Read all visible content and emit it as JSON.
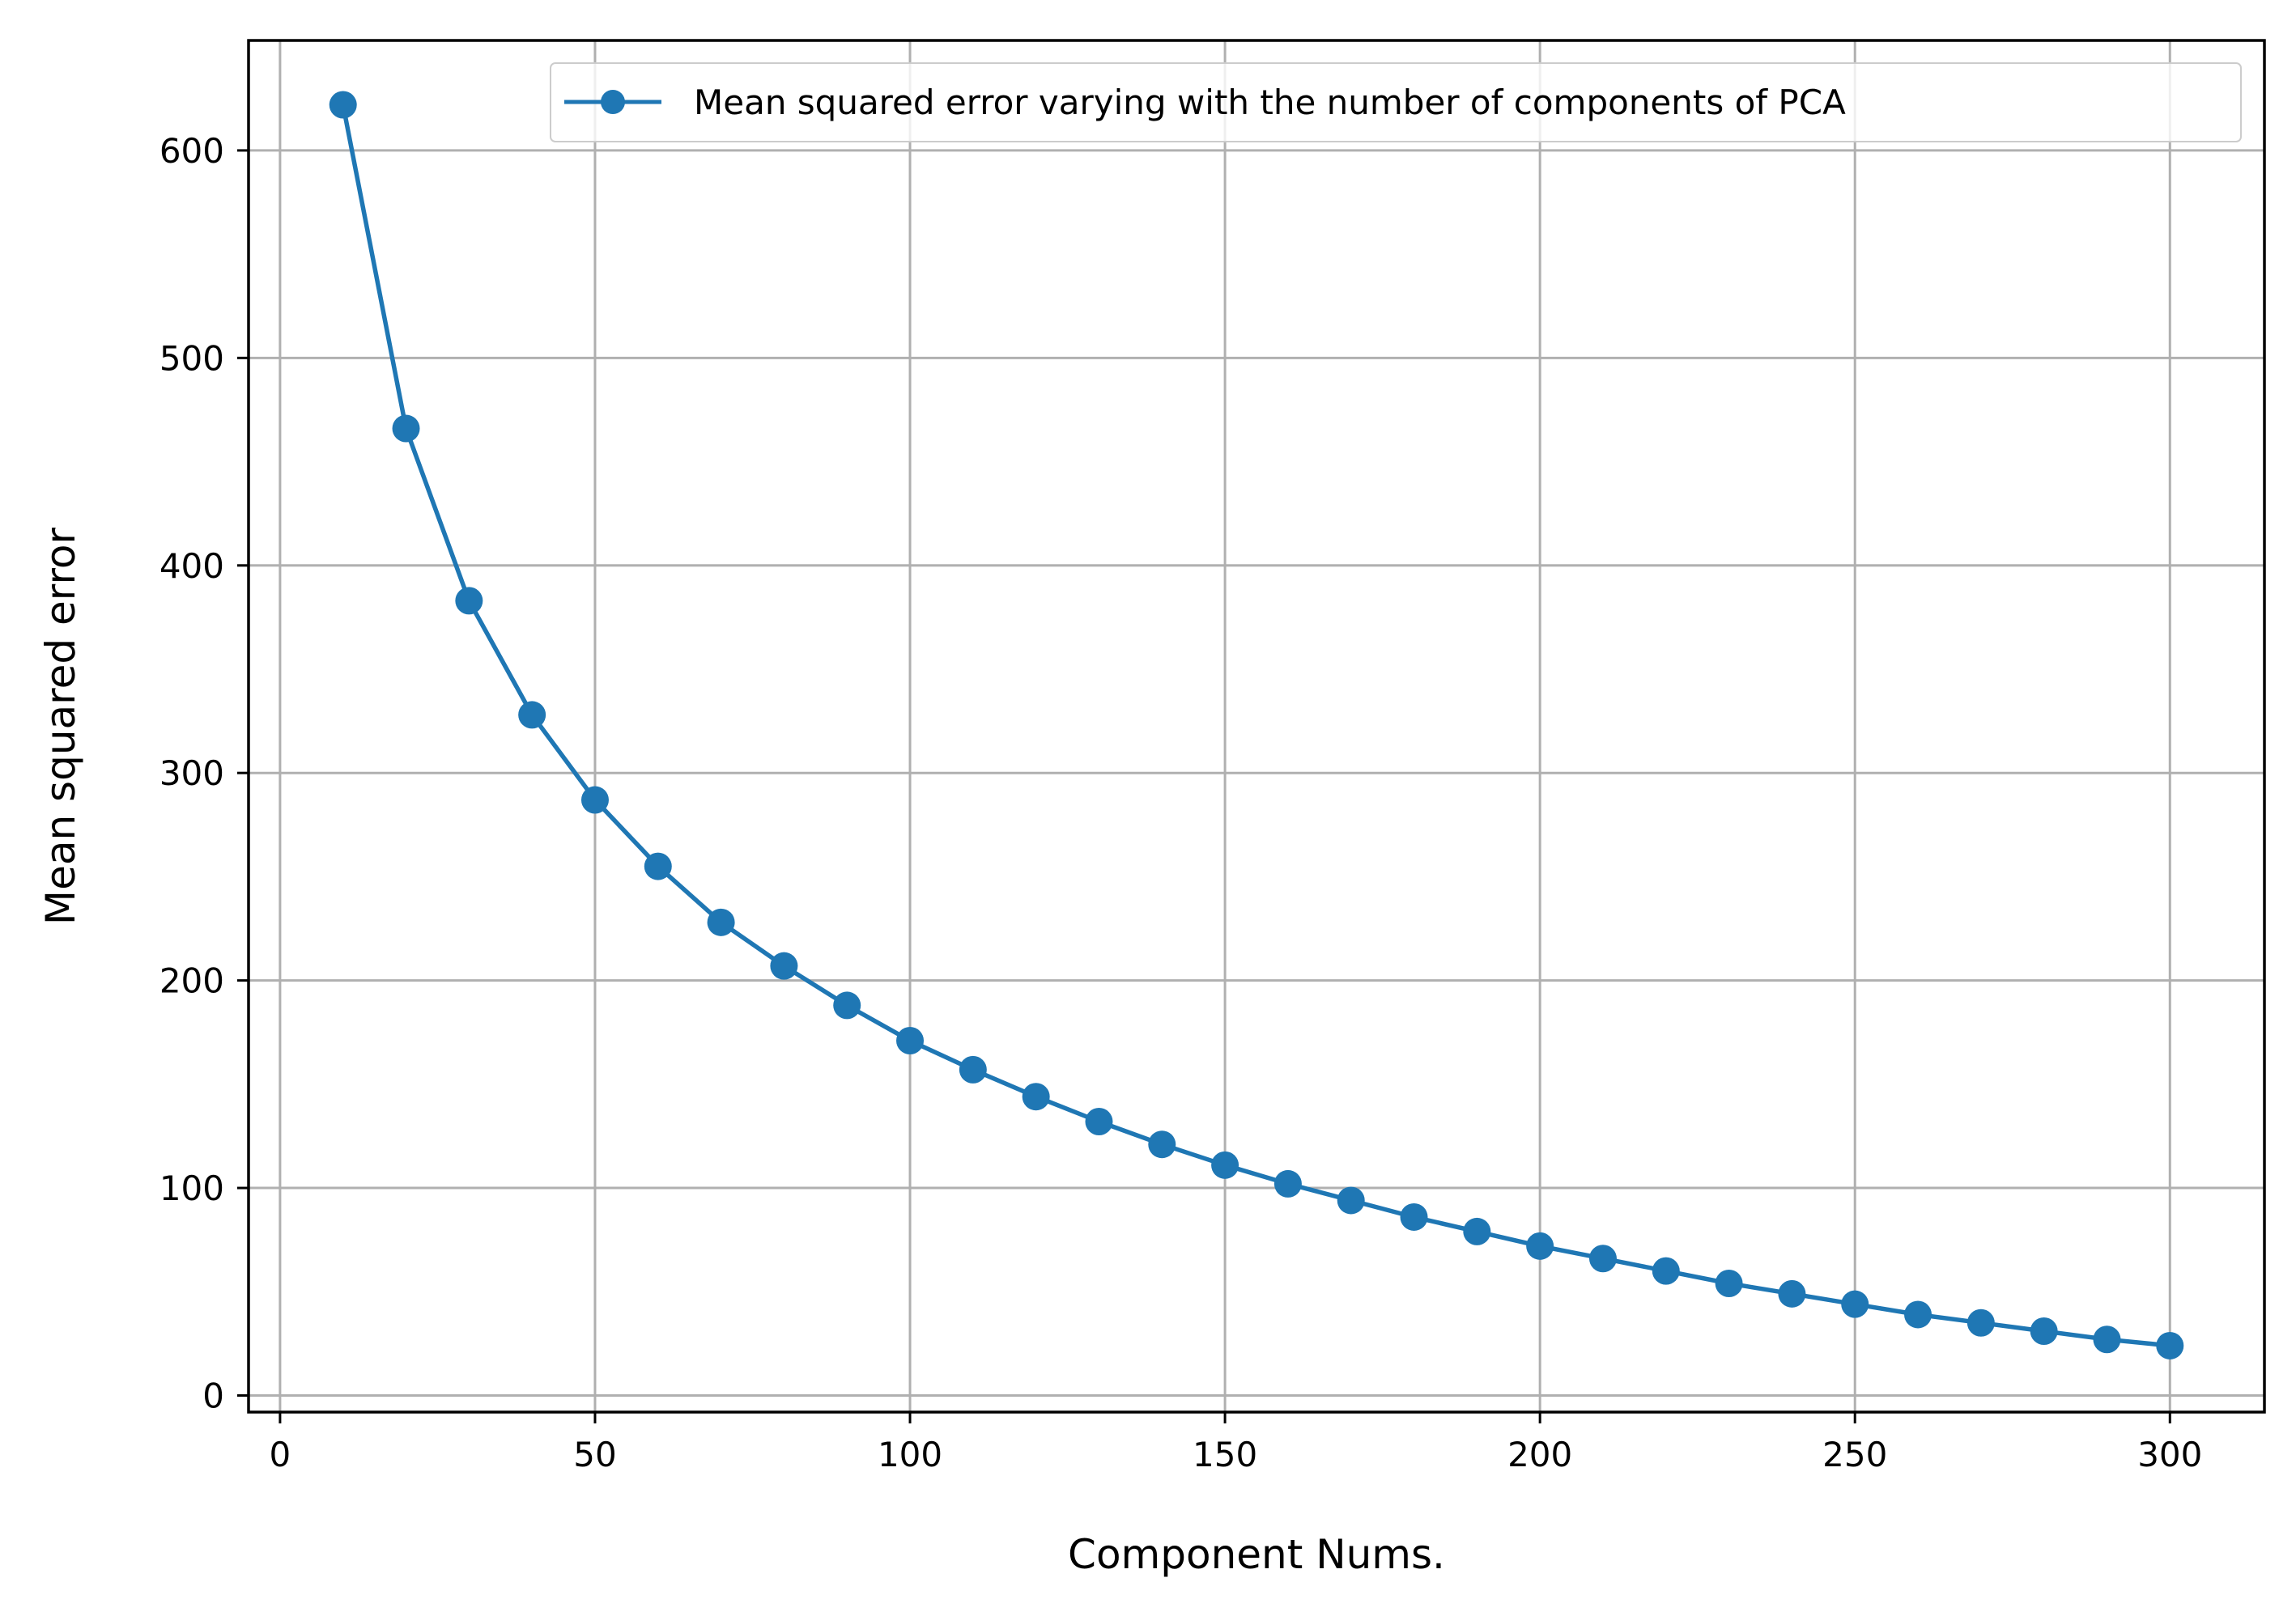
{
  "chart_data": {
    "type": "line",
    "title": "",
    "xlabel": "Component Nums.",
    "ylabel": "Mean squared error",
    "xlim": [
      -5,
      315
    ],
    "ylim": [
      -8,
      653
    ],
    "xticks": [
      0,
      50,
      100,
      150,
      200,
      250,
      300
    ],
    "yticks": [
      0,
      100,
      200,
      300,
      400,
      500,
      600
    ],
    "grid": true,
    "legend_position": "top-right",
    "color": "#1f77b4",
    "series": [
      {
        "name": "Mean squared error varying with the number of components of PCA",
        "marker": "circle",
        "x": [
          10,
          20,
          30,
          40,
          50,
          60,
          70,
          80,
          90,
          100,
          110,
          120,
          130,
          140,
          150,
          160,
          170,
          180,
          190,
          200,
          210,
          220,
          230,
          240,
          250,
          260,
          270,
          280,
          290,
          300
        ],
        "y": [
          622,
          466,
          383,
          328,
          287,
          255,
          228,
          207,
          188,
          171,
          157,
          144,
          132,
          121,
          111,
          102,
          94,
          86,
          79,
          72,
          66,
          60,
          54,
          49,
          44,
          39,
          35,
          31,
          27,
          24
        ]
      }
    ]
  }
}
